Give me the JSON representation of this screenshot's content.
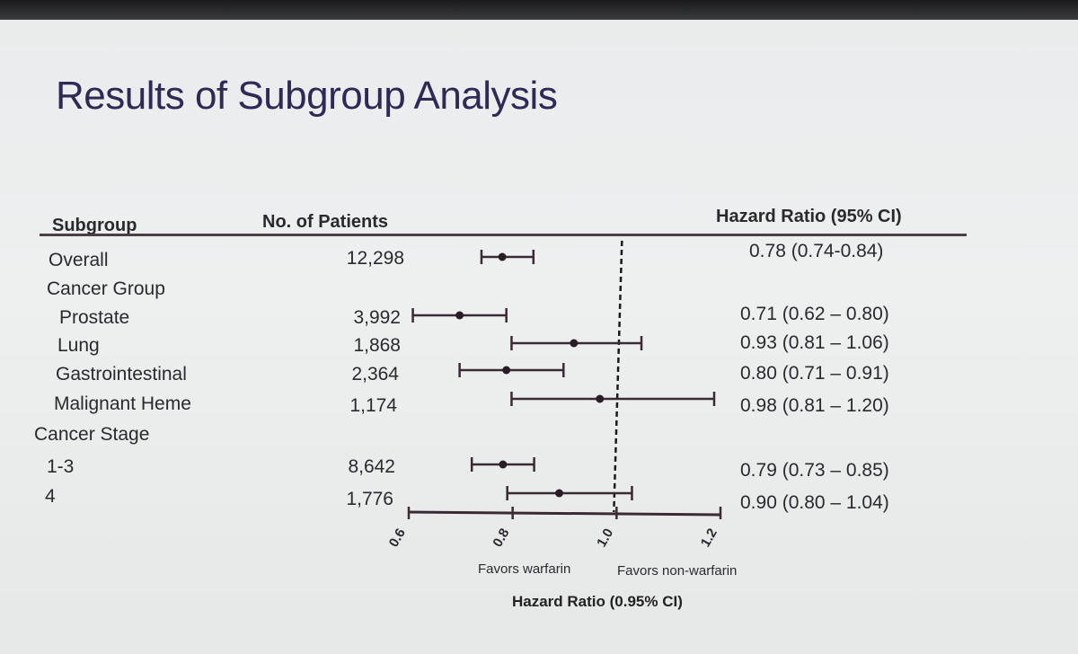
{
  "title": "Results of Subgroup Analysis",
  "headers": {
    "subgroup": "Subgroup",
    "patients": "No. of Patients",
    "hazard": "Hazard Ratio (95% CI)"
  },
  "chart_data": {
    "type": "forest",
    "x_range": [
      0.6,
      1.2
    ],
    "x_ticks": [
      0.6,
      0.8,
      1.0,
      1.2
    ],
    "x_tick_labels": [
      "0.6",
      "0.8",
      "1.0",
      "1.2"
    ],
    "reference_line": 1.0,
    "xlabel": "Hazard Ratio (0.95% CI)",
    "favors_left": "Favors warfarin",
    "favors_right": "Favors non-warfarin",
    "rows": [
      {
        "label": "Overall",
        "indent": 1,
        "patients": "12,298",
        "hr": 0.78,
        "lo": 0.74,
        "hi": 0.84,
        "text": "0.78 (0.74-0.84)"
      },
      {
        "label": "Cancer Group",
        "indent": 1,
        "patients": "",
        "hr": null,
        "lo": null,
        "hi": null,
        "text": ""
      },
      {
        "label": "Prostate",
        "indent": 2,
        "patients": "3,992",
        "hr": 0.71,
        "lo": 0.62,
        "hi": 0.8,
        "text": "0.71 (0.62 – 0.80)"
      },
      {
        "label": "Lung",
        "indent": 2,
        "patients": "1,868",
        "hr": 0.93,
        "lo": 0.81,
        "hi": 1.06,
        "text": "0.93 (0.81 – 1.06)"
      },
      {
        "label": "Gastrointestinal",
        "indent": 2,
        "patients": "2,364",
        "hr": 0.8,
        "lo": 0.71,
        "hi": 0.91,
        "text": "0.80 (0.71 – 0.91)"
      },
      {
        "label": "Malignant Heme",
        "indent": 2,
        "patients": "1,174",
        "hr": 0.98,
        "lo": 0.81,
        "hi": 1.2,
        "text": "0.98 (0.81 – 1.20)"
      },
      {
        "label": "Cancer Stage",
        "indent": 0,
        "patients": "",
        "hr": null,
        "lo": null,
        "hi": null,
        "text": ""
      },
      {
        "label": "1-3",
        "indent": 1,
        "patients": "8,642",
        "hr": 0.79,
        "lo": 0.73,
        "hi": 0.85,
        "text": "0.79 (0.73 – 0.85)"
      },
      {
        "label": "4",
        "indent": 1,
        "patients": "1,776",
        "hr": 0.9,
        "lo": 0.8,
        "hi": 1.04,
        "text": "0.90 (0.80 – 1.04)"
      }
    ]
  }
}
